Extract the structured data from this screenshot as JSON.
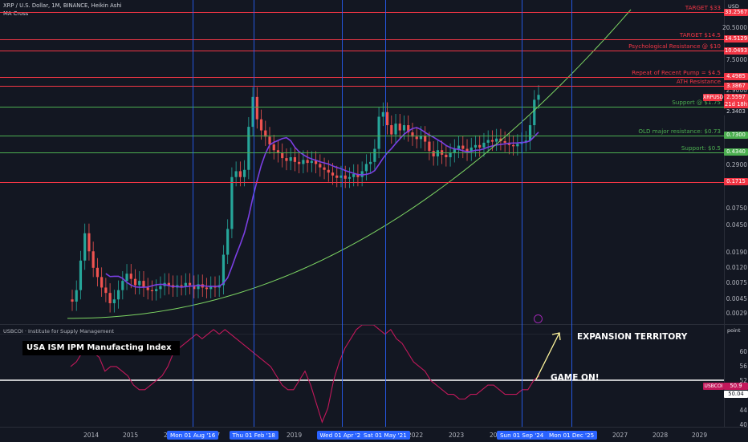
{
  "header": {
    "symbol_line": "XRP / U.S. Dollar, 1M, BINANCE, Heikin Ashi",
    "indicator": "MA Cross",
    "currency": "USD"
  },
  "indicator_pane": {
    "title": "USBCOI · Institute for Supply Management",
    "scale_label": "point",
    "chart_label": "USA ISM IPM Manufacting Index",
    "annotations": [
      "EXPANSION TERRITORY",
      "GAME ON!"
    ],
    "value_box": "50.9",
    "value_box_symbol": "USBCOI",
    "level_box": "50.04",
    "ticks": [
      "60",
      "56",
      "52",
      "48",
      "44",
      "40"
    ]
  },
  "colors": {
    "resistance": "#f23645",
    "support": "#4caf50",
    "ma": "#7b3fe4",
    "curve": "#7dd663",
    "ism": "#c2185b",
    "time_markers": "#2962ff",
    "arrow": "#fff59d"
  },
  "chart_data": [
    {
      "type": "candlestick",
      "title": "XRP / U.S. Dollar, 1M, BINANCE, Heikin Ashi",
      "y_scale": "log",
      "ylim": [
        0.0022,
        36
      ],
      "price_ticks": [
        "20.5000",
        "7.5000",
        "2.9000",
        "0.2900",
        "0.1750",
        "0.0750",
        "0.0450",
        "0.0190",
        "0.0120",
        "0.0075",
        "0.0045",
        "0.0029"
      ],
      "levels": [
        {
          "label": "TARGET $33",
          "value": "33.2567",
          "color": "#f23645"
        },
        {
          "label": "TARGET $14.5",
          "value": "14.5129",
          "color": "#f23645"
        },
        {
          "label": "Psychological Resistance @ $10",
          "value": "10.0493",
          "color": "#f23645"
        },
        {
          "label": "Repeat of Recent Pump = $4.5",
          "value": "4.4985",
          "color": "#f23645"
        },
        {
          "label": "ATH Resistance",
          "value": "3.3867",
          "color": "#f23645"
        },
        {
          "label": "Support @ $1.75",
          "value": "1.7521",
          "color": "#4caf50"
        },
        {
          "label": "OLD major resistance: $0.73",
          "value": "0.7300",
          "color": "#4caf50"
        },
        {
          "label": "Support: $0.5",
          "value": "0.4340",
          "color": "#4caf50"
        },
        {
          "label": "",
          "value": "0.1715",
          "color": "#f23645"
        }
      ],
      "current": {
        "symbol": "XRPUSD",
        "price": "2.5597",
        "countdown": "21d 18h",
        "open": "2.3403"
      },
      "series": [
        {
          "name": "MA Cross",
          "color": "#7b3fe4"
        }
      ]
    },
    {
      "type": "line",
      "title": "USBCOI · Institute for Supply Management",
      "x_ticks": [
        "2014",
        "2015",
        "2016",
        "2017",
        "2018",
        "2019",
        "2020",
        "2021",
        "2022",
        "2023",
        "2024",
        "2025",
        "2026",
        "2027",
        "2028",
        "2029"
      ],
      "ylim": [
        40,
        62
      ],
      "series": [
        {
          "name": "USBCOI",
          "values": [
            53,
            54,
            56,
            57,
            56,
            55,
            52,
            53,
            53,
            52,
            51,
            49,
            48,
            48,
            49,
            50,
            51,
            53,
            56,
            57,
            58,
            59,
            60,
            59,
            60,
            61,
            60,
            61,
            60,
            59,
            58,
            57,
            56,
            55,
            54,
            53,
            51,
            49,
            48,
            48,
            50,
            52,
            49,
            45,
            41,
            44,
            50,
            54,
            57,
            59,
            61,
            62,
            64,
            62,
            61,
            60,
            61,
            59,
            58,
            56,
            54,
            53,
            52,
            50,
            49,
            48,
            47,
            47,
            46,
            46,
            47,
            47,
            48,
            49,
            49,
            48,
            47,
            47,
            47,
            48,
            48,
            50,
            51
          ]
        }
      ]
    }
  ],
  "time_markers": [
    "Mon 01 Aug '16",
    "Thu 01 Feb '18",
    "Wed 01 Apr '20",
    "Sat 01 May '21",
    "Sun 01 Sep '24",
    "Mon 01 Dec '25"
  ]
}
